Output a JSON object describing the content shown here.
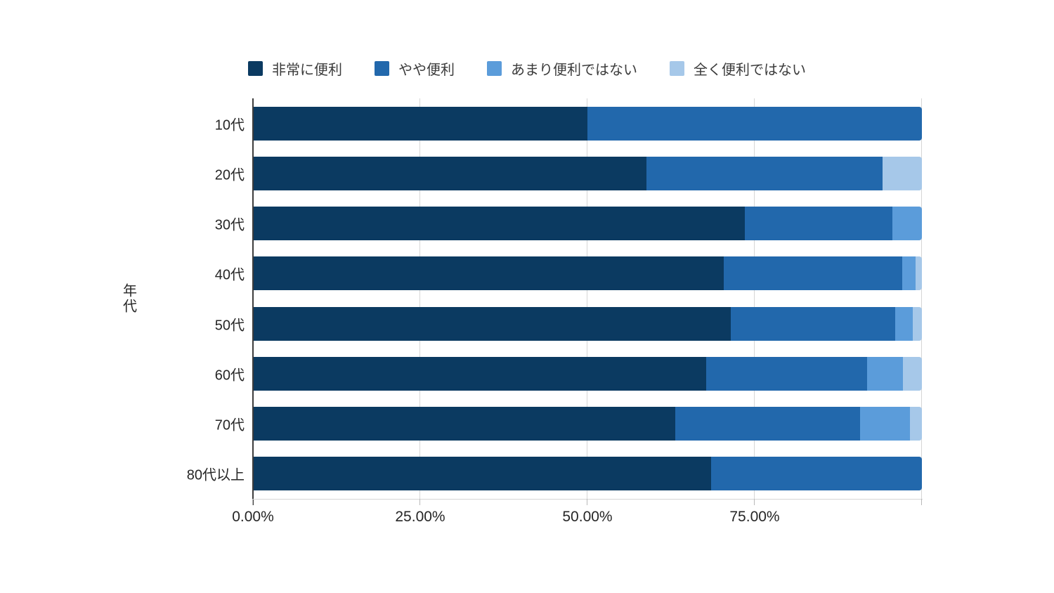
{
  "chart_data": {
    "type": "bar",
    "orientation": "horizontal",
    "stacked": true,
    "unit": "percent",
    "title": "",
    "xlabel": "",
    "ylabel": "年代",
    "xlim": [
      0,
      100
    ],
    "x_ticks": [
      0,
      25,
      50,
      75,
      100
    ],
    "x_tick_labels": [
      "0.00%",
      "25.00%",
      "50.00%",
      "75.00%",
      ""
    ],
    "grid": true,
    "legend_position": "top",
    "categories": [
      "10代",
      "20代",
      "30代",
      "40代",
      "50代",
      "60代",
      "70代",
      "80代以上"
    ],
    "series": [
      {
        "name": "非常に便利",
        "color": "#0b3a61",
        "values": [
          50.0,
          58.8,
          73.5,
          70.4,
          71.4,
          67.8,
          63.1,
          68.5
        ]
      },
      {
        "name": "やや便利",
        "color": "#2268ac",
        "values": [
          50.0,
          35.3,
          22.1,
          26.7,
          24.6,
          24.0,
          27.7,
          31.5
        ]
      },
      {
        "name": "あまり便利ではない",
        "color": "#5b9cda",
        "values": [
          0,
          0,
          4.4,
          2.0,
          2.6,
          5.4,
          7.4,
          0
        ]
      },
      {
        "name": "全く便利ではない",
        "color": "#a6c8e9",
        "values": [
          0,
          5.9,
          0,
          0.9,
          1.4,
          2.8,
          1.8,
          0
        ]
      }
    ]
  },
  "colors": {
    "background": "#ffffff",
    "gridline": "#d6d6d6",
    "axis_line": "#3d3d3d",
    "text": "#262626"
  }
}
